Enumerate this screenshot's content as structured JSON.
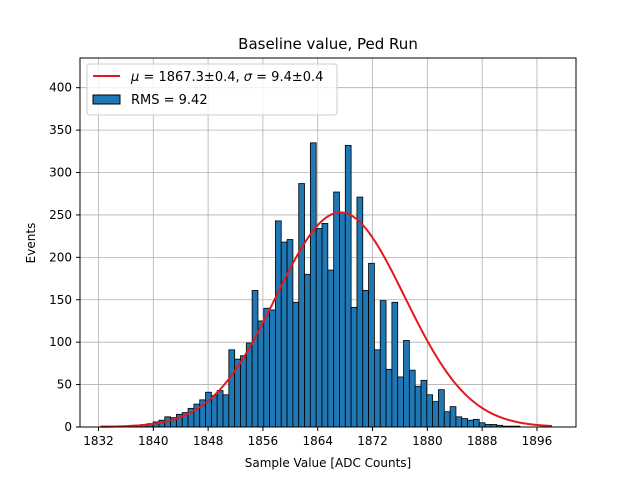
{
  "chart_data": {
    "type": "bar",
    "title": "Baseline value, Ped Run",
    "xlabel": "Sample Value [ADC Counts]",
    "ylabel": "Events",
    "xlim": [
      1829.3,
      1901.7
    ],
    "ylim": [
      0,
      435
    ],
    "xticks": [
      1832,
      1840,
      1848,
      1856,
      1864,
      1872,
      1880,
      1888,
      1896
    ],
    "yticks": [
      0,
      50,
      100,
      150,
      200,
      250,
      300,
      350,
      400
    ],
    "grid": true,
    "legend_position": "top-left",
    "bin_width": 0.85,
    "colors": {
      "bars": "#1f77b4",
      "edge": "#000000",
      "fit": "#e31a1c",
      "grid": "#b0b0b0"
    },
    "bins": [
      {
        "x": 1832.75,
        "y": 1
      },
      {
        "x": 1833.6,
        "y": 1
      },
      {
        "x": 1834.45,
        "y": 1
      },
      {
        "x": 1835.3,
        "y": 1
      },
      {
        "x": 1836.15,
        "y": 1
      },
      {
        "x": 1837.0,
        "y": 2
      },
      {
        "x": 1837.85,
        "y": 2
      },
      {
        "x": 1838.7,
        "y": 3
      },
      {
        "x": 1839.55,
        "y": 4
      },
      {
        "x": 1840.4,
        "y": 6
      },
      {
        "x": 1841.25,
        "y": 8
      },
      {
        "x": 1842.1,
        "y": 12
      },
      {
        "x": 1842.95,
        "y": 11
      },
      {
        "x": 1843.8,
        "y": 15
      },
      {
        "x": 1844.65,
        "y": 17
      },
      {
        "x": 1845.5,
        "y": 22
      },
      {
        "x": 1846.35,
        "y": 27
      },
      {
        "x": 1847.2,
        "y": 32
      },
      {
        "x": 1848.05,
        "y": 41
      },
      {
        "x": 1848.9,
        "y": 37
      },
      {
        "x": 1849.75,
        "y": 43
      },
      {
        "x": 1850.6,
        "y": 38
      },
      {
        "x": 1851.45,
        "y": 91
      },
      {
        "x": 1852.3,
        "y": 80
      },
      {
        "x": 1853.15,
        "y": 84
      },
      {
        "x": 1854.0,
        "y": 99
      },
      {
        "x": 1854.85,
        "y": 161
      },
      {
        "x": 1855.7,
        "y": 125
      },
      {
        "x": 1856.55,
        "y": 140
      },
      {
        "x": 1857.4,
        "y": 138
      },
      {
        "x": 1858.25,
        "y": 243
      },
      {
        "x": 1859.1,
        "y": 218
      },
      {
        "x": 1859.95,
        "y": 221
      },
      {
        "x": 1860.8,
        "y": 147
      },
      {
        "x": 1861.65,
        "y": 287
      },
      {
        "x": 1862.5,
        "y": 180
      },
      {
        "x": 1863.35,
        "y": 335
      },
      {
        "x": 1864.2,
        "y": 234
      },
      {
        "x": 1865.05,
        "y": 240
      },
      {
        "x": 1865.9,
        "y": 185
      },
      {
        "x": 1866.75,
        "y": 277
      },
      {
        "x": 1867.6,
        "y": 253
      },
      {
        "x": 1868.45,
        "y": 332
      },
      {
        "x": 1869.3,
        "y": 141
      },
      {
        "x": 1870.15,
        "y": 271
      },
      {
        "x": 1871.0,
        "y": 161
      },
      {
        "x": 1871.85,
        "y": 193
      },
      {
        "x": 1872.7,
        "y": 91
      },
      {
        "x": 1873.55,
        "y": 149
      },
      {
        "x": 1874.4,
        "y": 68
      },
      {
        "x": 1875.25,
        "y": 147
      },
      {
        "x": 1876.1,
        "y": 59
      },
      {
        "x": 1876.95,
        "y": 102
      },
      {
        "x": 1877.8,
        "y": 67
      },
      {
        "x": 1878.65,
        "y": 48
      },
      {
        "x": 1879.5,
        "y": 55
      },
      {
        "x": 1880.35,
        "y": 38
      },
      {
        "x": 1881.2,
        "y": 30
      },
      {
        "x": 1882.05,
        "y": 44
      },
      {
        "x": 1882.9,
        "y": 18
      },
      {
        "x": 1883.75,
        "y": 24
      },
      {
        "x": 1884.6,
        "y": 12
      },
      {
        "x": 1885.45,
        "y": 10
      },
      {
        "x": 1886.3,
        "y": 8
      },
      {
        "x": 1887.15,
        "y": 9
      },
      {
        "x": 1888.0,
        "y": 5
      },
      {
        "x": 1888.85,
        "y": 3
      },
      {
        "x": 1889.7,
        "y": 3
      },
      {
        "x": 1890.55,
        "y": 2
      },
      {
        "x": 1891.4,
        "y": 1
      },
      {
        "x": 1892.25,
        "y": 1
      },
      {
        "x": 1893.1,
        "y": 1
      }
    ],
    "fit": {
      "type": "gaussian",
      "mu": 1867.3,
      "sigma": 9.4,
      "amplitude": 253,
      "x_range": [
        1832.3,
        1898.2
      ]
    },
    "legend": [
      {
        "kind": "line",
        "label_mu_symbol": "μ",
        "label_mu_text": " = 1867.3±0.4, ",
        "label_sigma_symbol": "σ",
        "label_sigma_text": " = 9.4±0.4"
      },
      {
        "kind": "patch",
        "label": "RMS = 9.42"
      }
    ]
  }
}
